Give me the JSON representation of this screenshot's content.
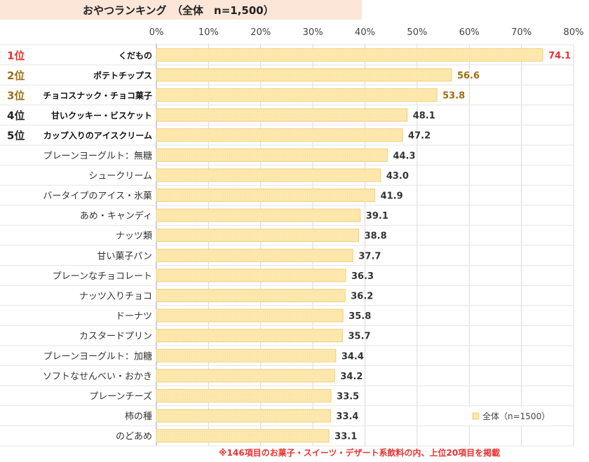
{
  "chart_data": {
    "type": "bar",
    "orientation": "horizontal",
    "title": "おやつランキング　（全体　n=1,500）",
    "xlim": [
      0,
      80
    ],
    "x_ticks": [
      "0%",
      "10%",
      "20%",
      "30%",
      "40%",
      "50%",
      "60%",
      "70%",
      "80%"
    ],
    "grid": true,
    "categories": [
      "くだもの",
      "ポテトチップス",
      "チョコスナック・チョコ菓子",
      "甘いクッキー・ビスケット",
      "カップ入りのアイスクリーム",
      "プレーンヨーグルト：無糖",
      "シュークリーム",
      "バータイプのアイス・氷菓",
      "あめ・キャンディ",
      "ナッツ類",
      "甘い菓子パン",
      "プレーンなチョコレート",
      "ナッツ入りチョコ",
      "ドーナツ",
      "カスタードプリン",
      "プレーンヨーグルト：加糖",
      "ソフトなせんべい・おかき",
      "プレーンチーズ",
      "柿の種",
      "のどあめ"
    ],
    "ranks": [
      "1位",
      "2位",
      "3位",
      "4位",
      "5位"
    ],
    "series": [
      {
        "name": "全体（n=1500）",
        "values": [
          74.1,
          56.6,
          53.8,
          48.1,
          47.2,
          44.3,
          43.0,
          41.9,
          39.1,
          38.8,
          37.7,
          36.3,
          36.2,
          35.8,
          35.7,
          34.4,
          34.2,
          33.5,
          33.4,
          33.1
        ],
        "labels": [
          "74.1",
          "56.6",
          "53.8",
          "48.1",
          "47.2",
          "44.3",
          "43.0",
          "41.9",
          "39.1",
          "38.8",
          "37.7",
          "36.3",
          "36.2",
          "35.8",
          "35.7",
          "34.4",
          "34.2",
          "33.5",
          "33.4",
          "33.1"
        ]
      }
    ],
    "legend": "bottom-right",
    "footnote": "※146項目のお菓子・スイーツ・デザート系飲料の内、上位20項目を掲載",
    "colors": {
      "bar_fill": "#fde9b0",
      "bar_stroke": "#f2cf7e",
      "rank1": "#e8312f",
      "rank2_3": "#9b6f10",
      "rank4_5": "#222222",
      "label_default": "#333333"
    }
  }
}
